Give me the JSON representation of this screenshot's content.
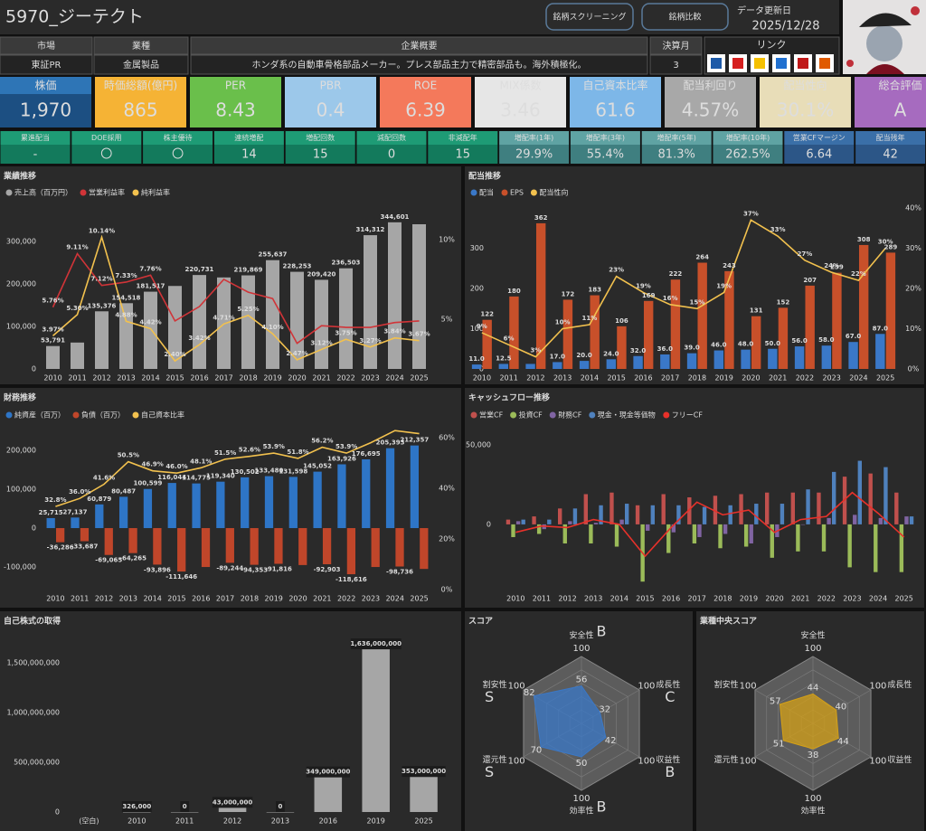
{
  "header": {
    "title": "5970_ジーテクト",
    "buttons": [
      "銘柄スクリーニング",
      "銘柄比較"
    ],
    "update_label": "データ更新日",
    "update_date": "2025/12/28"
  },
  "info": {
    "columns": [
      {
        "label": "市場",
        "value": "東証PR"
      },
      {
        "label": "業種",
        "value": "金属製品"
      },
      {
        "label": "企業概要",
        "value": "ホンダ系の自動車骨格部品メーカー。プレス部品主力で精密部品も。海外積極化。"
      },
      {
        "label": "決算月",
        "value": "3"
      }
    ],
    "link_label": "リンク"
  },
  "metrics": [
    {
      "label": "株価",
      "value": "1,970",
      "color": "#2e75b6",
      "value_color": "#1c4f82",
      "text_color": "#ffffff"
    },
    {
      "label": "時価総額(億円)",
      "value": "865",
      "color": "#f5b335",
      "text_color": "#4a3a10"
    },
    {
      "label": "PER",
      "value": "8.43",
      "color": "#6abf4b",
      "text_color": "#1a3a10"
    },
    {
      "label": "PBR",
      "value": "0.4",
      "color": "#9cc8ea",
      "text_color": "#1a3550"
    },
    {
      "label": "ROE",
      "value": "6.39",
      "color": "#f4795b",
      "text_color": "#3a1508"
    },
    {
      "label": "MIX係数",
      "value": "3.46",
      "color": "#e6e6e6",
      "text_color": "#555555"
    },
    {
      "label": "自己資本比率",
      "value": "61.6",
      "color": "#7db7e8",
      "text_color": "#1a3550"
    },
    {
      "label": "配当利回り",
      "value": "4.57%",
      "color": "#a8a8a8",
      "text_color": "#333333"
    },
    {
      "label": "配当性向",
      "value": "30.1%",
      "color": "#e8ddb8",
      "text_color": "#333333"
    },
    {
      "label": "総合評価",
      "value": "A",
      "color": "#a66bbf",
      "text_color": "#2a0a3a"
    }
  ],
  "sub_metrics": [
    {
      "color": "#1e9b75",
      "value_color": "#137a5c",
      "items": [
        {
          "label": "累進配当",
          "value": "-"
        },
        {
          "label": "DOE採用",
          "value": "〇"
        },
        {
          "label": "株主優待",
          "value": "〇"
        },
        {
          "label": "連続増配",
          "value": "14"
        },
        {
          "label": "増配回数",
          "value": "15"
        },
        {
          "label": "減配回数",
          "value": "0"
        },
        {
          "label": "非減配年",
          "value": "15"
        }
      ]
    },
    {
      "color": "#5fa3a3",
      "value_color": "#3f7f80",
      "items": [
        {
          "label": "増配率(1年)",
          "value": "29.9%"
        },
        {
          "label": "増配率(3年)",
          "value": "55.4%"
        },
        {
          "label": "増配率(5年)",
          "value": "81.3%"
        },
        {
          "label": "増配率(10年)",
          "value": "262.5%"
        }
      ]
    },
    {
      "color": "#3a6fa8",
      "value_color": "#2c5687",
      "items": [
        {
          "label": "営業CFマージン",
          "value": "6.64"
        },
        {
          "label": "配当残年",
          "value": "42"
        }
      ]
    }
  ],
  "chart_data": [
    {
      "type": "bar",
      "title": "業績推移",
      "legend": "top-left",
      "categories": [
        "2010",
        "2011",
        "2012",
        "2013",
        "2014",
        "2015",
        "2016",
        "2017",
        "2018",
        "2019",
        "2020",
        "2021",
        "2022",
        "2023",
        "2024",
        "2025"
      ],
      "series": [
        {
          "name": "売上高（百万円）",
          "type": "bar",
          "color": "#a6a6a6",
          "values": [
            53791,
            62000,
            135376,
            154518,
            181517,
            195000,
            220731,
            215000,
            219869,
            255637,
            228253,
            209420,
            236503,
            314312,
            344601,
            340000
          ],
          "value_labels": [
            "53,791",
            null,
            "135,376",
            "154,518",
            "181,517",
            null,
            "220,731",
            null,
            "219,869",
            "255,637",
            "228,253",
            "209,420",
            "236,503",
            "314,312",
            "344,601",
            null
          ]
        },
        {
          "name": "営業利益率",
          "type": "line",
          "axis": "y2",
          "color": "#d13438",
          "values": [
            5.76,
            9.11,
            7.12,
            7.33,
            7.76,
            4.9,
            5.8,
            7.5,
            6.7,
            6.3,
            3.5,
            4.6,
            4.5,
            4.5,
            4.8,
            4.9
          ],
          "value_labels": [
            "5.76%",
            "9.11%",
            "7.12%",
            "7.33%",
            "7.76%",
            null,
            null,
            null,
            null,
            null,
            null,
            null,
            null,
            null,
            null,
            null
          ]
        },
        {
          "name": "純利益率",
          "type": "line",
          "axis": "y2",
          "color": "#f2c14e",
          "values": [
            3.97,
            5.3,
            10.14,
            4.88,
            4.42,
            2.4,
            3.42,
            4.71,
            5.25,
            4.1,
            2.47,
            3.12,
            3.75,
            3.27,
            3.84,
            3.67
          ],
          "value_labels": [
            "3.97%",
            "5.30%",
            "10.14%",
            "4.88%",
            "4.42%",
            "2.40%",
            "3.42%",
            "4.71%",
            "5.25%",
            "4.10%",
            "2.47%",
            "3.12%",
            "3.75%",
            "3.27%",
            "3.84%",
            "3.67%"
          ]
        }
      ],
      "ylim": [
        0,
        357000
      ],
      "yticks": [
        0,
        {
          "value": 100000,
          "label": "100,000"
        },
        {
          "value": 200000,
          "label": "200,000"
        },
        {
          "value": 300000,
          "label": "300,000"
        }
      ],
      "y2lim": [
        1.9,
        11.4
      ],
      "y2ticks": [
        {
          "value": 5,
          "label": "5%"
        },
        {
          "value": 10,
          "label": "10%"
        }
      ]
    },
    {
      "type": "bar",
      "title": "配当推移",
      "legend": "top-left",
      "categories": [
        "2010",
        "2011",
        "2012",
        "2013",
        "2014",
        "2015",
        "2016",
        "2017",
        "2018",
        "2019",
        "2020",
        "2021",
        "2022",
        "2023",
        "2024",
        "2025"
      ],
      "series": [
        {
          "name": "配当",
          "type": "bar",
          "color": "#3a78c8",
          "values": [
            11,
            12.5,
            12.5,
            17,
            20,
            24,
            32,
            36,
            39,
            46,
            48,
            50,
            56,
            58,
            67,
            87
          ],
          "value_labels": [
            "11.0",
            "12.5",
            null,
            "17.0",
            "20.0",
            "24.0",
            "32.0",
            "36.0",
            "39.0",
            "46.0",
            "48.0",
            "50.0",
            "56.0",
            "58.0",
            "67.0",
            "87.0"
          ]
        },
        {
          "name": "EPS",
          "type": "bar",
          "color": "#c8502a",
          "data_labels": true,
          "values": [
            122,
            180,
            362,
            172,
            183,
            106,
            169,
            222,
            264,
            243,
            131,
            152,
            207,
            239,
            308,
            289
          ]
        },
        {
          "name": "配当性向",
          "type": "line",
          "axis": "y2",
          "color": "#f2c14e",
          "values": [
            9,
            6,
            3,
            10,
            11,
            23,
            19,
            16,
            15,
            19,
            37,
            33,
            27,
            24,
            22,
            30
          ],
          "value_labels": [
            "9%",
            "6%",
            "3%",
            "10%",
            "11%",
            "23%",
            "19%",
            "16%",
            "15%",
            "19%",
            "37%",
            "33%",
            "27%",
            "24%",
            "22%",
            "30%"
          ]
        }
      ],
      "ylim": [
        0,
        400
      ],
      "yticks": [
        0,
        100,
        200,
        300
      ],
      "y2lim": [
        0,
        40
      ],
      "y2ticks": [
        {
          "value": 0,
          "label": "0%"
        },
        {
          "value": 10,
          "label": "10%"
        },
        {
          "value": 20,
          "label": "20%"
        },
        {
          "value": 30,
          "label": "30%"
        },
        {
          "value": 40,
          "label": "40%"
        }
      ]
    },
    {
      "type": "bar",
      "title": "財務推移",
      "legend": "top-left",
      "categories": [
        "2010",
        "2011",
        "2012",
        "2013",
        "2014",
        "2015",
        "2016",
        "2017",
        "2018",
        "2019",
        "2020",
        "2021",
        "2022",
        "2023",
        "2024",
        "2025"
      ],
      "series": [
        {
          "name": "純資産（百万）",
          "type": "bar",
          "color": "#2e75c6",
          "values": [
            25715,
            27137,
            60879,
            80487,
            100599,
            116044,
            114775,
            119340,
            130502,
            133480,
            131598,
            145052,
            163926,
            176695,
            205393,
            212357
          ],
          "value_labels": [
            "25,715",
            "27,137",
            "60,879",
            "80,487",
            "100,599",
            "116,044",
            "114,775",
            "119,340",
            "130,502",
            "133,480",
            "131,598",
            "145,052",
            "163,926",
            "176,695",
            "205,393",
            "212,357"
          ]
        },
        {
          "name": "負債（百万）",
          "type": "bar",
          "color": "#c0462a",
          "values": [
            -36286,
            -33687,
            -69065,
            -64265,
            -93896,
            -111646,
            -100000,
            -89244,
            -94353,
            -91816,
            -95000,
            -92903,
            -118616,
            -100000,
            -98736,
            -105000
          ],
          "value_labels": [
            "-36,286",
            "-33,687",
            "-69,065",
            "-64,265",
            "-93,896",
            "-111,646",
            null,
            "-89,244",
            "-94,353",
            "-91,816",
            null,
            "-92,903",
            "-118,616",
            null,
            "-98,736",
            null
          ]
        },
        {
          "name": "自己資本比率",
          "type": "line",
          "axis": "y2",
          "color": "#f2c14e",
          "values": [
            32.8,
            36.0,
            41.6,
            50.5,
            46.9,
            46.0,
            48.1,
            51.5,
            52.6,
            53.9,
            51.8,
            56.2,
            53.9,
            58.0,
            62.8,
            61.6
          ],
          "value_labels": [
            "32.8%",
            "36.0%",
            "41.6%",
            "50.5%",
            "46.9%",
            "46.0%",
            "48.1%",
            "51.5%",
            "52.6%",
            "53.9%",
            "51.8%",
            "56.2%",
            "53.9%",
            null,
            null,
            null
          ]
        }
      ],
      "ylim": [
        -158000,
        265000
      ],
      "yticks": [
        {
          "value": -100000,
          "label": "-100,000"
        },
        0,
        {
          "value": 100000,
          "label": "100,000"
        },
        {
          "value": 200000,
          "label": "200,000"
        }
      ],
      "y2lim": [
        0,
        65
      ],
      "y2ticks": [
        {
          "value": 0,
          "label": "0%"
        },
        {
          "value": 20,
          "label": "20%"
        },
        {
          "value": 40,
          "label": "40%"
        },
        {
          "value": 60,
          "label": "60%"
        }
      ]
    },
    {
      "type": "bar",
      "title": "キャッシュフロー推移",
      "legend": "top-left",
      "categories": [
        "2010",
        "2011",
        "2012",
        "2013",
        "2014",
        "2015",
        "2016",
        "2017",
        "2018",
        "2019",
        "2020",
        "2021",
        "2022",
        "2023",
        "2024",
        "2025"
      ],
      "series": [
        {
          "name": "営業CF",
          "type": "bar",
          "color": "#c0504d",
          "values": [
            3000,
            5000,
            10000,
            19000,
            20000,
            12000,
            19000,
            17000,
            18000,
            19000,
            20000,
            20000,
            20000,
            30000,
            32000,
            20000
          ]
        },
        {
          "name": "投資CF",
          "type": "bar",
          "color": "#9bbb59",
          "values": [
            -8000,
            -6000,
            -12000,
            -12000,
            -14000,
            -36000,
            -18000,
            -12000,
            -15000,
            -14000,
            -21000,
            -17000,
            -17000,
            -27000,
            -30000,
            -30000
          ]
        },
        {
          "name": "財務CF",
          "type": "bar",
          "color": "#8064a2",
          "values": [
            2000,
            -3000,
            2000,
            1000,
            3000,
            -4000,
            -5000,
            -8000,
            -6000,
            -12000,
            -8000,
            0,
            4000,
            6000,
            4000,
            5000
          ]
        },
        {
          "name": "現金・現金等価物",
          "type": "bar",
          "color": "#4f81bd",
          "values": [
            3000,
            3000,
            10000,
            12000,
            13000,
            12000,
            12000,
            11000,
            12000,
            13000,
            13000,
            22000,
            33000,
            40000,
            36000,
            5000
          ]
        },
        {
          "name": "フリーCF",
          "type": "line",
          "color": "#e8312a",
          "values": [
            -5000,
            -1000,
            -2000,
            3000,
            0,
            -20000,
            -2000,
            14000,
            6000,
            9000,
            -5000,
            3000,
            5000,
            20000,
            7000,
            -8000
          ]
        }
      ],
      "ylim": [
        -41000,
        62500
      ],
      "yticks": [
        0,
        {
          "value": 50000,
          "label": "50,000"
        }
      ]
    },
    {
      "type": "bar",
      "title": "自己株式の取得",
      "categories": [
        "(空白)",
        "2010",
        "2011",
        "2012",
        "2013",
        "2016",
        "2019",
        "2025"
      ],
      "series": [
        {
          "type": "bar",
          "color": "#a6a6a6",
          "values": [
            null,
            326000,
            0,
            43000000,
            0,
            349000000,
            1636000000,
            353000000
          ],
          "value_labels": [
            null,
            "326,000",
            "0",
            "43,000,000",
            "0",
            "349,000,000",
            "1,636,000,000",
            "353,000,000"
          ]
        }
      ],
      "ylim": [
        0,
        1800000000
      ],
      "yticks": [
        0,
        {
          "value": 500000000,
          "label": "500,000,000"
        },
        {
          "value": 1000000000,
          "label": "1,000,000,000"
        },
        {
          "value": 1500000000,
          "label": "1,500,000,000"
        }
      ]
    },
    {
      "type": "radar",
      "title": "スコア",
      "axes": [
        "安全性",
        "成長性",
        "収益性",
        "効率性",
        "還元性",
        "割安性"
      ],
      "grades": [
        "B",
        "C",
        "B",
        "B",
        "S",
        "S"
      ],
      "rmax": 100,
      "series": [
        {
          "color": "#3a78c8",
          "values": [
            56,
            32,
            42,
            50,
            70,
            82
          ]
        }
      ]
    },
    {
      "type": "radar",
      "title": "業種中央スコア",
      "axes": [
        "安全性",
        "成長性",
        "収益性",
        "効率性",
        "還元性",
        "割安性"
      ],
      "rmax": 100,
      "series": [
        {
          "color": "#d4a017",
          "values": [
            44,
            40,
            44,
            38,
            51,
            57
          ]
        }
      ]
    }
  ]
}
